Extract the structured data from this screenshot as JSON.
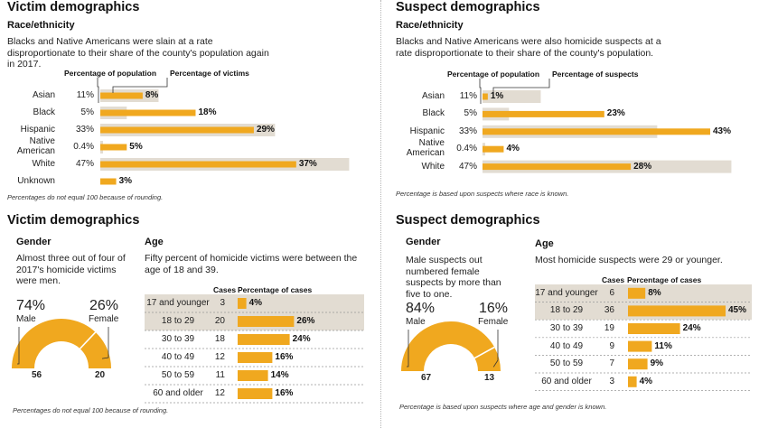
{
  "colors": {
    "accent": "#f0a81f",
    "shade": "#e2dcd2",
    "text": "#222222"
  },
  "victim_race": {
    "title": "Victim demographics",
    "subtitle": "Race/ethnicity",
    "description": "Blacks and Native Americans were slain at a rate disproportionate to their share of the county's population again in 2017.",
    "pop_header": "Percentage of population",
    "pct_header": "Percentage of victims",
    "note": "Percentages do not equal 100 because of rounding."
  },
  "suspect_race": {
    "title": "Suspect demographics",
    "subtitle": "Race/ethnicity",
    "description": "Blacks and Native Americans were also homicide suspects at a rate disproportionate to their share of the county's population.",
    "pop_header": "Percentage of population",
    "pct_header": "Percentage of suspects",
    "note": "Percentage is based upon suspects where race is known."
  },
  "victim_gender_age": {
    "title": "Victim demographics",
    "gender_title": "Gender",
    "gender_desc": "Almost three out of four of 2017's homicide victims were men.",
    "male_pct": "74%",
    "male_label": "Male",
    "female_pct": "26%",
    "female_label": "Female",
    "male_count": "56",
    "female_count": "20",
    "age_title": "Age",
    "age_desc": "Fifty percent of homicide victims were between the age of 18 and 39.",
    "cases_header": "Cases",
    "pct_header": "Percentage of cases",
    "note": "Percentages do not equal 100 because of rounding."
  },
  "suspect_gender_age": {
    "title": "Suspect demographics",
    "gender_title": "Gender",
    "gender_desc": "Male suspects out numbered female suspects by more than five to one.",
    "male_pct": "84%",
    "male_label": "Male",
    "female_pct": "16%",
    "female_label": "Female",
    "male_count": "67",
    "female_count": "13",
    "age_title": "Age",
    "age_desc": "Most homicide suspects were 29 or younger.",
    "cases_header": "Cases",
    "pct_header": "Percentage of cases",
    "note": "Percentage is based upon suspects where age and gender is known."
  },
  "chart_data": [
    {
      "type": "bar",
      "title": "Victim demographics — Race/ethnicity",
      "categories": [
        "Asian",
        "Black",
        "Hispanic",
        "Native American",
        "White",
        "Unknown"
      ],
      "series": [
        {
          "name": "Percentage of population",
          "values": [
            11,
            5,
            33,
            0.4,
            47,
            null
          ],
          "labels": [
            "11%",
            "5%",
            "33%",
            "0.4%",
            "47%",
            ""
          ]
        },
        {
          "name": "Percentage of victims",
          "values": [
            8,
            18,
            29,
            5,
            37,
            3
          ],
          "labels": [
            "8%",
            "18%",
            "29%",
            "5%",
            "37%",
            "3%"
          ]
        }
      ]
    },
    {
      "type": "bar",
      "title": "Suspect demographics — Race/ethnicity",
      "categories": [
        "Asian",
        "Black",
        "Hispanic",
        "Native American",
        "White"
      ],
      "series": [
        {
          "name": "Percentage of population",
          "values": [
            11,
            5,
            33,
            0.4,
            47
          ],
          "labels": [
            "11%",
            "5%",
            "33%",
            "0.4%",
            "47%"
          ]
        },
        {
          "name": "Percentage of suspects",
          "values": [
            1,
            23,
            43,
            4,
            28
          ],
          "labels": [
            "1%",
            "23%",
            "43%",
            "4%",
            "28%"
          ]
        }
      ]
    },
    {
      "type": "pie",
      "title": "Victim gender",
      "categories": [
        "Male",
        "Female"
      ],
      "values": [
        74,
        26
      ],
      "counts": [
        56,
        20
      ]
    },
    {
      "type": "bar",
      "title": "Victim age",
      "categories": [
        "17 and younger",
        "18 to 29",
        "30 to 39",
        "40 to 49",
        "50 to 59",
        "60 and older"
      ],
      "cases": [
        3,
        20,
        18,
        12,
        11,
        12
      ],
      "values": [
        4,
        26,
        24,
        16,
        14,
        16
      ],
      "labels": [
        "4%",
        "26%",
        "24%",
        "16%",
        "14%",
        "16%"
      ],
      "highlighted": [
        0,
        1
      ]
    },
    {
      "type": "pie",
      "title": "Suspect gender",
      "categories": [
        "Male",
        "Female"
      ],
      "values": [
        84,
        16
      ],
      "counts": [
        67,
        13
      ]
    },
    {
      "type": "bar",
      "title": "Suspect age",
      "categories": [
        "17 and younger",
        "18 to 29",
        "30 to 39",
        "40 to 49",
        "50 to 59",
        "60 and older"
      ],
      "cases": [
        6,
        36,
        19,
        9,
        7,
        3
      ],
      "values": [
        8,
        45,
        24,
        11,
        9,
        4
      ],
      "labels": [
        "8%",
        "45%",
        "24%",
        "11%",
        "9%",
        "4%"
      ],
      "highlighted": [
        0,
        1
      ]
    }
  ]
}
